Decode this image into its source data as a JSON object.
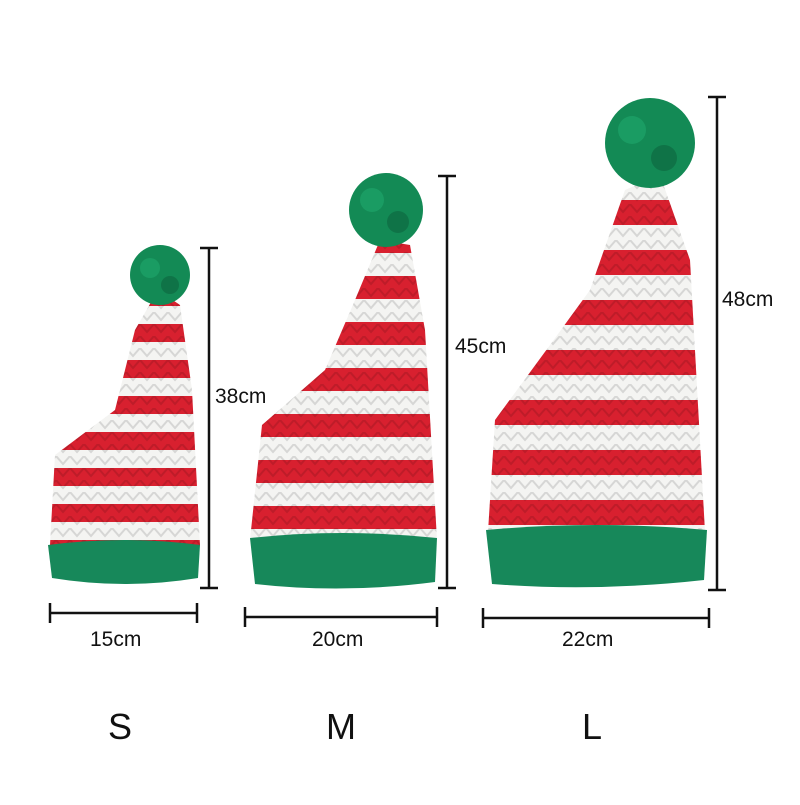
{
  "products": [
    {
      "size": "S",
      "width": "15cm",
      "height": "38cm"
    },
    {
      "size": "M",
      "width": "20cm",
      "height": "45cm"
    },
    {
      "size": "L",
      "width": "22cm",
      "height": "48cm"
    }
  ],
  "colors": {
    "red": "#d8202f",
    "white": "#f4f4f2",
    "green": "#17885a",
    "pompom": "#138a55",
    "line": "#111111"
  }
}
